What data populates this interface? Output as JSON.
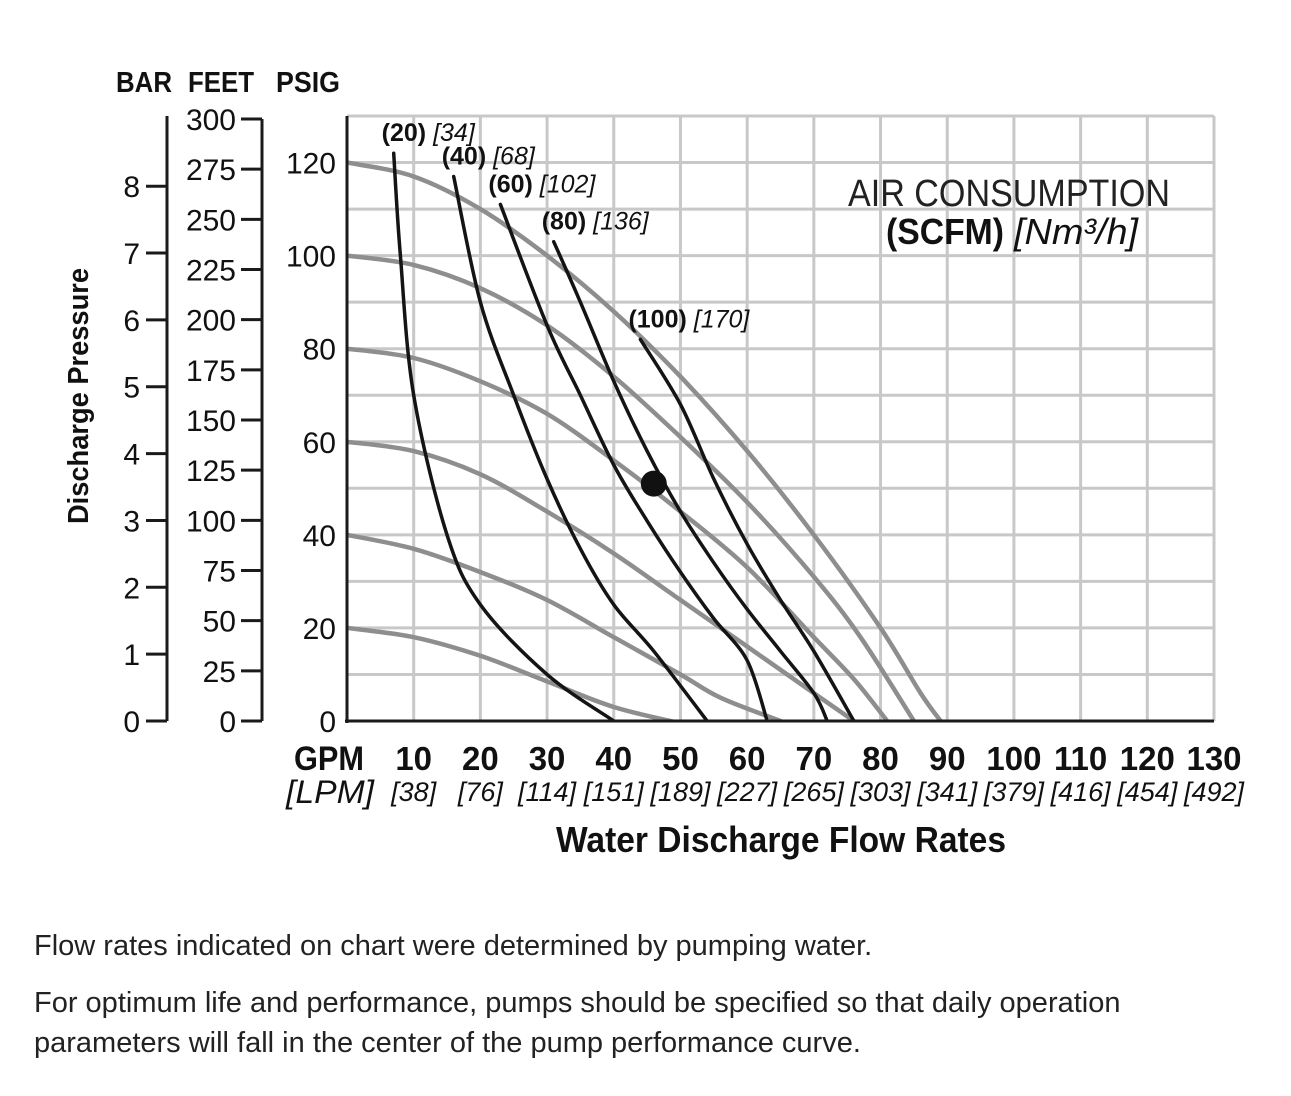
{
  "chart_data": {
    "type": "line",
    "title_lines": [
      "AIR CONSUMPTION",
      "(SCFM)",
      "[Nm³/h]"
    ],
    "xlabel": "Water Discharge Flow Rates",
    "x_unit_primary": "GPM",
    "x_unit_secondary": "[LPM]",
    "xlim": [
      0,
      130
    ],
    "x_ticks": [
      10,
      20,
      30,
      40,
      50,
      60,
      70,
      80,
      90,
      100,
      110,
      120,
      130
    ],
    "x_ticks_lpm": [
      "[38]",
      "[76]",
      "[114]",
      "[151]",
      "[189]",
      "[227]",
      "[265]",
      "[303]",
      "[341]",
      "[379]",
      "[416]",
      "[454]",
      "[492]"
    ],
    "ylabel": "Discharge Pressure",
    "ylim": [
      0,
      130
    ],
    "y_axis_headers": [
      "BAR",
      "FEET",
      "PSIG"
    ],
    "psig_ticks": [
      0,
      20,
      40,
      60,
      80,
      100,
      120
    ],
    "feet_ticks": [
      0,
      25,
      50,
      75,
      100,
      125,
      150,
      175,
      200,
      225,
      250,
      275,
      300
    ],
    "bar_ticks": [
      0,
      1,
      2,
      3,
      4,
      5,
      6,
      7,
      8
    ],
    "grid": true,
    "pressure_curves": [
      {
        "points": [
          [
            0,
            20
          ],
          [
            10,
            18
          ],
          [
            20,
            14
          ],
          [
            30,
            8.5
          ],
          [
            40,
            3
          ],
          [
            50,
            -0.5
          ]
        ]
      },
      {
        "points": [
          [
            0,
            40
          ],
          [
            10,
            37
          ],
          [
            20,
            32
          ],
          [
            30,
            26
          ],
          [
            40,
            18
          ],
          [
            50,
            10
          ],
          [
            56,
            5
          ],
          [
            65,
            0
          ]
        ]
      },
      {
        "points": [
          [
            0,
            60
          ],
          [
            10,
            58
          ],
          [
            20,
            53
          ],
          [
            30,
            45
          ],
          [
            40,
            36
          ],
          [
            50,
            26
          ],
          [
            60,
            16
          ],
          [
            70,
            6
          ],
          [
            76,
            0
          ]
        ]
      },
      {
        "points": [
          [
            0,
            80
          ],
          [
            10,
            78
          ],
          [
            20,
            73
          ],
          [
            30,
            66
          ],
          [
            40,
            56
          ],
          [
            50,
            45
          ],
          [
            60,
            33
          ],
          [
            70,
            18
          ],
          [
            76,
            9
          ],
          [
            81,
            0
          ]
        ]
      },
      {
        "points": [
          [
            0,
            100
          ],
          [
            10,
            98
          ],
          [
            20,
            93
          ],
          [
            30,
            85
          ],
          [
            40,
            74
          ],
          [
            50,
            61
          ],
          [
            60,
            47
          ],
          [
            70,
            31
          ],
          [
            77,
            18
          ],
          [
            85,
            0
          ]
        ]
      },
      {
        "points": [
          [
            0,
            120
          ],
          [
            10,
            117
          ],
          [
            20,
            110
          ],
          [
            30,
            100
          ],
          [
            40,
            88
          ],
          [
            50,
            74
          ],
          [
            60,
            58
          ],
          [
            70,
            40
          ],
          [
            80,
            20
          ],
          [
            86,
            6
          ],
          [
            89,
            0
          ]
        ]
      }
    ],
    "air_curves": [
      {
        "label": "(20)",
        "label_metric": "[34]",
        "points": [
          [
            7,
            122
          ],
          [
            8,
            100
          ],
          [
            10,
            70
          ],
          [
            15,
            40
          ],
          [
            20,
            25
          ],
          [
            30,
            10
          ],
          [
            40,
            0
          ]
        ]
      },
      {
        "label": "(40)",
        "label_metric": "[68]",
        "points": [
          [
            16,
            117
          ],
          [
            20,
            90
          ],
          [
            25,
            70
          ],
          [
            30,
            52
          ],
          [
            35,
            37
          ],
          [
            40,
            25
          ],
          [
            46,
            15
          ],
          [
            54,
            0
          ]
        ]
      },
      {
        "label": "(60)",
        "label_metric": "[102]",
        "points": [
          [
            23,
            111
          ],
          [
            30,
            85
          ],
          [
            35,
            70
          ],
          [
            40,
            55
          ],
          [
            45,
            43
          ],
          [
            50,
            32
          ],
          [
            55,
            22
          ],
          [
            60,
            13
          ],
          [
            63,
            0
          ]
        ]
      },
      {
        "label": "(80)",
        "label_metric": "[136]",
        "points": [
          [
            31,
            103
          ],
          [
            35,
            90
          ],
          [
            40,
            73
          ],
          [
            45,
            58
          ],
          [
            50,
            45
          ],
          [
            55,
            34
          ],
          [
            60,
            24
          ],
          [
            65,
            15
          ],
          [
            70,
            6
          ],
          [
            72,
            0
          ]
        ]
      },
      {
        "label": "(100)",
        "label_metric": "[170]",
        "points": [
          [
            44,
            82
          ],
          [
            50,
            68
          ],
          [
            55,
            52
          ],
          [
            60,
            38
          ],
          [
            65,
            26
          ],
          [
            70,
            15
          ],
          [
            76,
            0
          ]
        ]
      }
    ],
    "marker_point": [
      46,
      51
    ]
  },
  "notes": [
    "Flow rates indicated on chart were determined by pumping water.",
    "For optimum life and performance, pumps should be specified so that daily operation parameters will fall in the center of the pump performance curve."
  ]
}
